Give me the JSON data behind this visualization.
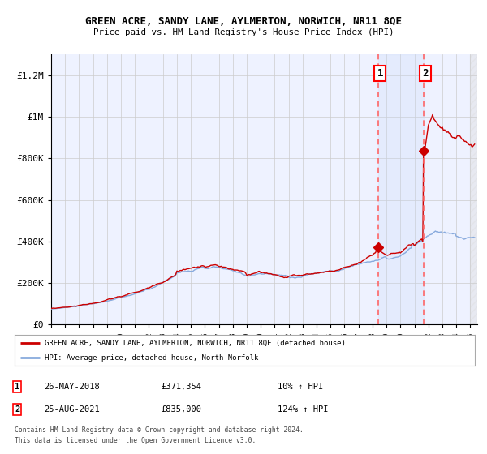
{
  "title": "GREEN ACRE, SANDY LANE, AYLMERTON, NORWICH, NR11 8QE",
  "subtitle": "Price paid vs. HM Land Registry's House Price Index (HPI)",
  "ylabel_ticks": [
    "£0",
    "£200K",
    "£400K",
    "£600K",
    "£800K",
    "£1M",
    "£1.2M"
  ],
  "ytick_values": [
    0,
    200000,
    400000,
    600000,
    800000,
    1000000,
    1200000
  ],
  "ylim": [
    0,
    1300000
  ],
  "xlim_start": 1995.0,
  "xlim_end": 2025.5,
  "background_color": "#ffffff",
  "plot_bg_color": "#eef2ff",
  "grid_color": "#cccccc",
  "hpi_color": "#88aadd",
  "price_color": "#cc0000",
  "sale1_x": 2018.4,
  "sale1_y": 371354,
  "sale2_x": 2021.65,
  "sale2_y": 835000,
  "sale1_label": "1",
  "sale2_label": "2",
  "legend_line1": "GREEN ACRE, SANDY LANE, AYLMERTON, NORWICH, NR11 8QE (detached house)",
  "legend_line2": "HPI: Average price, detached house, North Norfolk",
  "footnote3": "Contains HM Land Registry data © Crown copyright and database right 2024.",
  "footnote4": "This data is licensed under the Open Government Licence v3.0."
}
